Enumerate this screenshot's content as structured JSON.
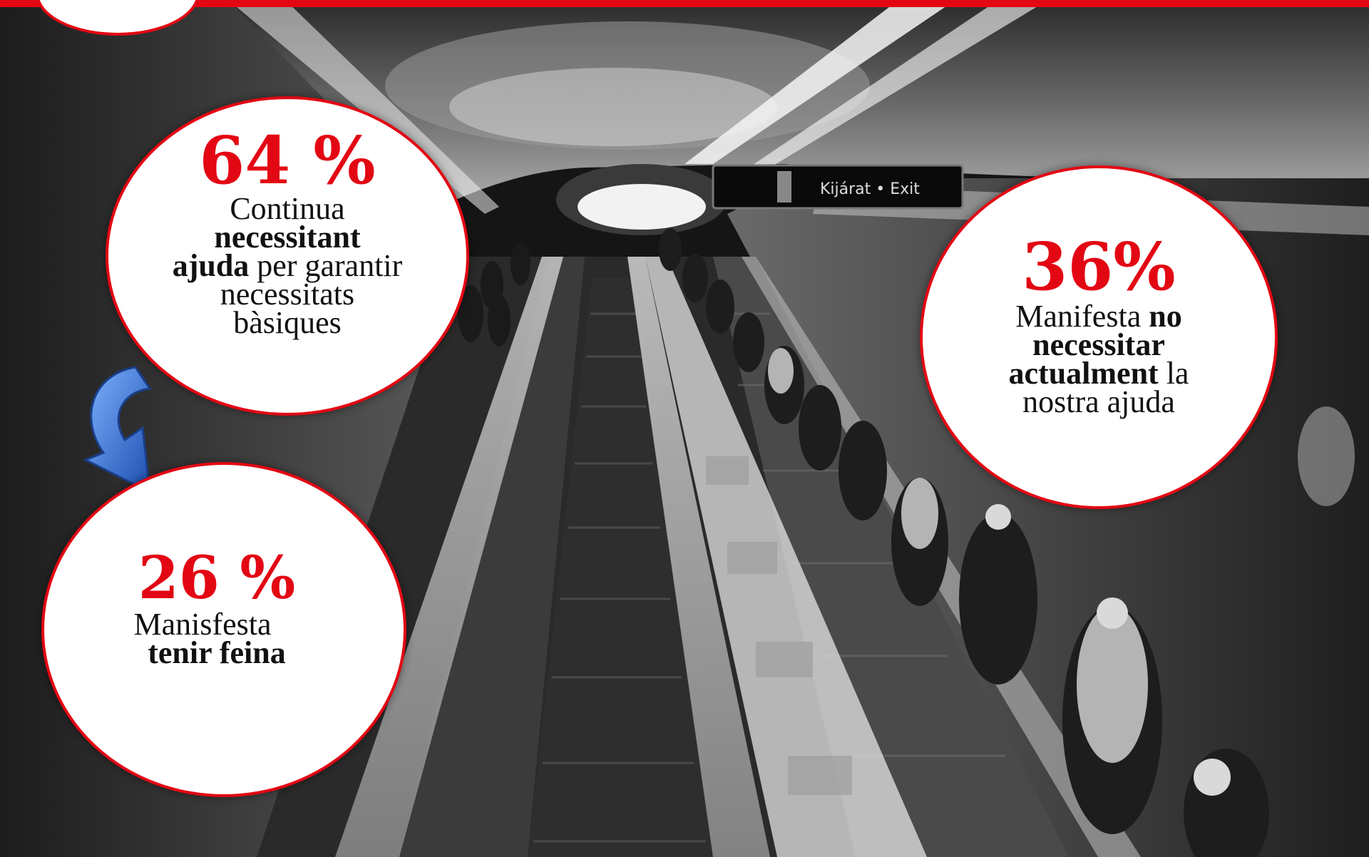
{
  "colors": {
    "accent": "#e30613",
    "arrow": "#2f6fd6",
    "photo_tone": "grayscale"
  },
  "background": {
    "sign_text": "Kijárat • Exit"
  },
  "stats": {
    "needs_help": {
      "value": "64 %",
      "line1": "Continua",
      "bold1": "necessitant",
      "bold2": "ajuda",
      "rest2": " per garantir",
      "line3": "necessitats",
      "line4": "bàsiques"
    },
    "no_help": {
      "value": "36%",
      "pre1": "Manifesta ",
      "bold1": "no",
      "bold2": "necessitar",
      "bold3": "actualment",
      "rest3": " la",
      "line4": "nostra ajuda"
    },
    "has_job": {
      "value": "26 %",
      "line1": "Manisfesta",
      "bold1": "tenir  feina"
    }
  },
  "icons": {
    "arrow": "curved-arrow-down-icon"
  }
}
